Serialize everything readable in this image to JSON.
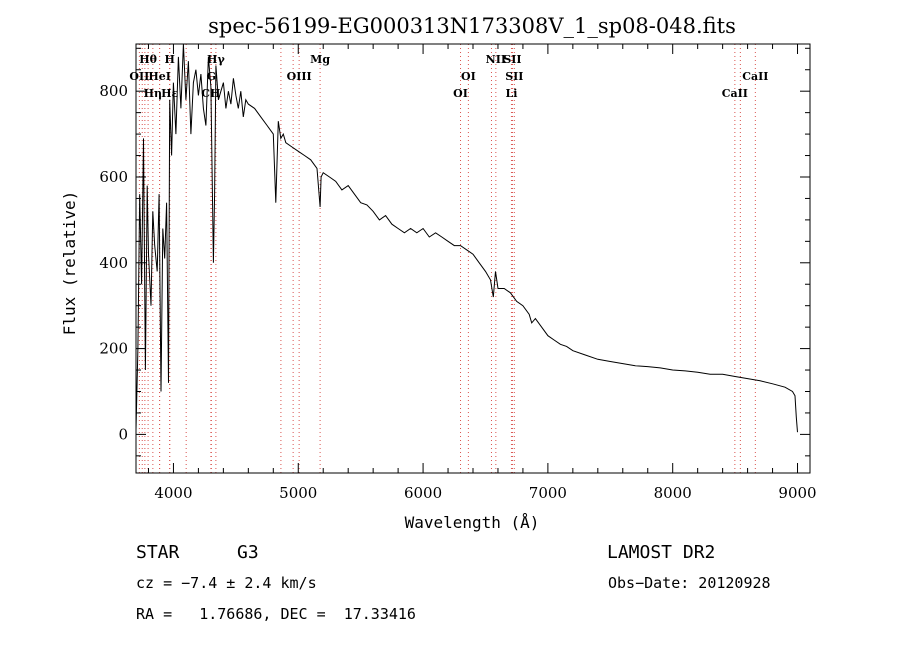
{
  "chart_data": {
    "type": "line",
    "title": "spec-56199-EG000313N173308V_1_sp08-048.fits",
    "xlabel": "Wavelength (Å)",
    "ylabel": "Flux (relative)",
    "xlim": [
      3700,
      9100
    ],
    "ylim": [
      -90,
      910
    ],
    "xticks": [
      4000,
      5000,
      6000,
      7000,
      8000,
      9000
    ],
    "yticks": [
      0,
      200,
      400,
      600,
      800
    ],
    "line_color": "#000000",
    "marker_color": "#d9534f",
    "series": [
      {
        "x": [
          3700,
          3715,
          3730,
          3745,
          3760,
          3775,
          3790,
          3800,
          3820,
          3835,
          3850,
          3870,
          3885,
          3900,
          3915,
          3930,
          3945,
          3960,
          3970,
          3985,
          4000,
          4020,
          4040,
          4060,
          4080,
          4100,
          4120,
          4140,
          4160,
          4180,
          4200,
          4220,
          4240,
          4260,
          4280,
          4300,
          4320,
          4330,
          4340,
          4360,
          4380,
          4400,
          4420,
          4440,
          4460,
          4480,
          4500,
          4520,
          4540,
          4560,
          4580,
          4600,
          4650,
          4700,
          4750,
          4800,
          4820,
          4840,
          4860,
          4880,
          4900,
          4950,
          5000,
          5050,
          5100,
          5150,
          5175,
          5183,
          5200,
          5250,
          5300,
          5350,
          5400,
          5450,
          5500,
          5550,
          5600,
          5650,
          5700,
          5750,
          5800,
          5850,
          5900,
          5950,
          6000,
          6050,
          6100,
          6150,
          6200,
          6250,
          6300,
          6350,
          6400,
          6450,
          6500,
          6540,
          6563,
          6580,
          6600,
          6650,
          6700,
          6750,
          6800,
          6850,
          6870,
          6900,
          6950,
          7000,
          7050,
          7100,
          7150,
          7200,
          7300,
          7400,
          7500,
          7600,
          7700,
          7800,
          7900,
          8000,
          8100,
          8200,
          8300,
          8400,
          8500,
          8600,
          8700,
          8800,
          8900,
          8960,
          8980,
          8990,
          9000
        ],
        "y": [
          10,
          200,
          560,
          350,
          690,
          150,
          580,
          420,
          300,
          520,
          440,
          380,
          560,
          100,
          480,
          410,
          540,
          120,
          780,
          650,
          820,
          700,
          880,
          760,
          910,
          780,
          870,
          700,
          820,
          850,
          790,
          840,
          760,
          720,
          880,
          810,
          400,
          560,
          860,
          780,
          800,
          820,
          760,
          800,
          770,
          830,
          790,
          760,
          800,
          740,
          780,
          770,
          760,
          740,
          720,
          700,
          540,
          730,
          690,
          700,
          680,
          670,
          660,
          650,
          640,
          620,
          530,
          600,
          610,
          600,
          590,
          570,
          580,
          560,
          540,
          535,
          520,
          500,
          510,
          490,
          480,
          470,
          480,
          470,
          480,
          460,
          470,
          460,
          450,
          440,
          440,
          430,
          420,
          400,
          380,
          360,
          320,
          380,
          340,
          340,
          330,
          310,
          300,
          280,
          260,
          270,
          250,
          230,
          220,
          210,
          205,
          195,
          185,
          175,
          170,
          165,
          160,
          158,
          155,
          150,
          148,
          145,
          140,
          140,
          135,
          130,
          125,
          118,
          110,
          100,
          90,
          40,
          5
        ]
      }
    ],
    "line_markers": [
      {
        "label": "Hθ",
        "x": 3797,
        "row": 0
      },
      {
        "label": "OII",
        "x": 3727,
        "row": 1
      },
      {
        "label": "H",
        "x": 3970,
        "row": 0
      },
      {
        "label": "HeI",
        "x": 3889,
        "row": 1
      },
      {
        "label": "Hη",
        "x": 3835,
        "row": 2
      },
      {
        "label": "Hε",
        "x": 3970,
        "row": 2
      },
      {
        "label": "Hγ",
        "x": 4340,
        "row": 0
      },
      {
        "label": "G",
        "x": 4304,
        "row": 1
      },
      {
        "label": "CH",
        "x": 4300,
        "row": 2
      },
      {
        "label": "OIII",
        "x": 5007,
        "row": 1
      },
      {
        "label": "Mg",
        "x": 5175,
        "row": 0
      },
      {
        "label": "OI",
        "x": 6300,
        "row": 2
      },
      {
        "label": "OI",
        "x": 6363,
        "row": 1
      },
      {
        "label": "NII",
        "x": 6583,
        "row": 0
      },
      {
        "label": "SII",
        "x": 6716,
        "row": 0
      },
      {
        "label": "SII",
        "x": 6731,
        "row": 1
      },
      {
        "label": "Li",
        "x": 6708,
        "row": 2
      },
      {
        "label": "CaII",
        "x": 8662,
        "row": 1
      },
      {
        "label": "CaII",
        "x": 8498,
        "row": 2
      }
    ],
    "extra_marker_lines": [
      3750,
      3771,
      3889,
      4102,
      4861,
      4959,
      6548,
      8542
    ],
    "grid": false
  },
  "info": {
    "object_class": "STAR",
    "subclass": "G3",
    "survey": "LAMOST DR2",
    "cz": "cz = −7.4 ± 2.4 km/s",
    "obs_date": "Obs−Date: 20120928",
    "radec": "RA =   1.76686, DEC =  17.33416"
  }
}
